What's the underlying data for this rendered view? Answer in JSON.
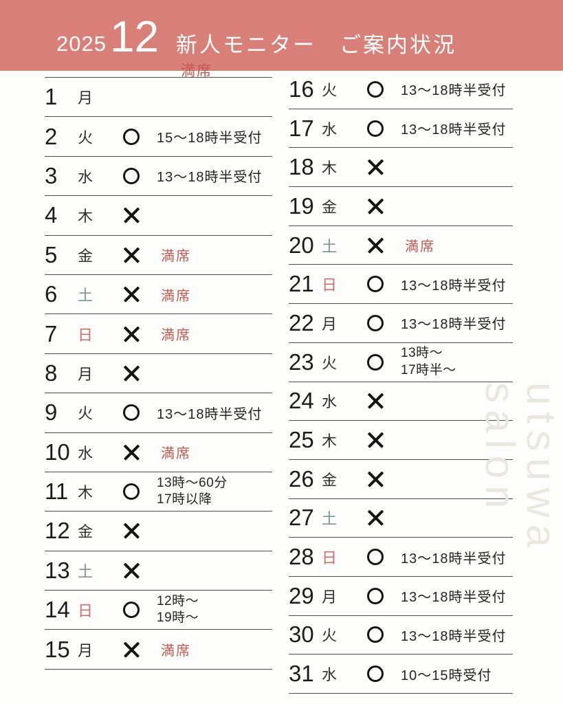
{
  "header": {
    "year": "2025",
    "month": "12",
    "title": "新人モニター　ご案内状況",
    "overflow_note": "満席"
  },
  "colors": {
    "banner_bg": "#d88078",
    "full_red": "#c4574f",
    "sunday": "#cb6d67",
    "saturday": "#7d939a",
    "line": "#4c4c4c",
    "ink": "#1c1c1c",
    "watermark": "#eae7e0"
  },
  "symbols": {
    "available": "○",
    "unavailable": "✕"
  },
  "days": [
    {
      "date": 1,
      "dow": "月",
      "dow_type": "wd",
      "status": "",
      "notes": [],
      "note_type": ""
    },
    {
      "date": 2,
      "dow": "火",
      "dow_type": "wd",
      "status": "o",
      "notes": [
        "15〜18時半受付"
      ],
      "note_type": "time"
    },
    {
      "date": 3,
      "dow": "水",
      "dow_type": "wd",
      "status": "o",
      "notes": [
        "13〜18時半受付"
      ],
      "note_type": "time"
    },
    {
      "date": 4,
      "dow": "木",
      "dow_type": "wd",
      "status": "x",
      "notes": [],
      "note_type": ""
    },
    {
      "date": 5,
      "dow": "金",
      "dow_type": "wd",
      "status": "x",
      "notes": [
        "満席"
      ],
      "note_type": "full"
    },
    {
      "date": 6,
      "dow": "土",
      "dow_type": "sat",
      "status": "x",
      "notes": [
        "満席"
      ],
      "note_type": "full"
    },
    {
      "date": 7,
      "dow": "日",
      "dow_type": "sun",
      "status": "x",
      "notes": [
        "満席"
      ],
      "note_type": "full"
    },
    {
      "date": 8,
      "dow": "月",
      "dow_type": "wd",
      "status": "x",
      "notes": [],
      "note_type": ""
    },
    {
      "date": 9,
      "dow": "火",
      "dow_type": "wd",
      "status": "o",
      "notes": [
        "13〜18時半受付"
      ],
      "note_type": "time"
    },
    {
      "date": 10,
      "dow": "水",
      "dow_type": "wd",
      "status": "x",
      "notes": [
        "満席"
      ],
      "note_type": "full"
    },
    {
      "date": 11,
      "dow": "木",
      "dow_type": "wd",
      "status": "o",
      "notes": [
        "13時〜60分",
        "17時以降"
      ],
      "note_type": "time"
    },
    {
      "date": 12,
      "dow": "金",
      "dow_type": "wd",
      "status": "x",
      "notes": [],
      "note_type": ""
    },
    {
      "date": 13,
      "dow": "土",
      "dow_type": "sat",
      "status": "x",
      "notes": [],
      "note_type": ""
    },
    {
      "date": 14,
      "dow": "日",
      "dow_type": "sun",
      "status": "o",
      "notes": [
        "12時〜",
        "19時〜"
      ],
      "note_type": "time"
    },
    {
      "date": 15,
      "dow": "月",
      "dow_type": "wd",
      "status": "x",
      "notes": [
        "満席"
      ],
      "note_type": "full"
    },
    {
      "date": 16,
      "dow": "火",
      "dow_type": "wd",
      "status": "o",
      "notes": [
        "13〜18時半受付"
      ],
      "note_type": "time"
    },
    {
      "date": 17,
      "dow": "水",
      "dow_type": "wd",
      "status": "o",
      "notes": [
        "13〜18時半受付"
      ],
      "note_type": "time"
    },
    {
      "date": 18,
      "dow": "木",
      "dow_type": "wd",
      "status": "x",
      "notes": [],
      "note_type": ""
    },
    {
      "date": 19,
      "dow": "金",
      "dow_type": "wd",
      "status": "x",
      "notes": [],
      "note_type": ""
    },
    {
      "date": 20,
      "dow": "土",
      "dow_type": "sat",
      "status": "x",
      "notes": [
        "満席"
      ],
      "note_type": "full"
    },
    {
      "date": 21,
      "dow": "日",
      "dow_type": "sun",
      "status": "o",
      "notes": [
        "13〜18時半受付"
      ],
      "note_type": "time"
    },
    {
      "date": 22,
      "dow": "月",
      "dow_type": "wd",
      "status": "o",
      "notes": [
        "13〜18時半受付"
      ],
      "note_type": "time"
    },
    {
      "date": 23,
      "dow": "火",
      "dow_type": "wd",
      "status": "o",
      "notes": [
        "13時〜",
        "17時半〜"
      ],
      "note_type": "time"
    },
    {
      "date": 24,
      "dow": "水",
      "dow_type": "wd",
      "status": "x",
      "notes": [],
      "note_type": ""
    },
    {
      "date": 25,
      "dow": "木",
      "dow_type": "wd",
      "status": "x",
      "notes": [],
      "note_type": ""
    },
    {
      "date": 26,
      "dow": "金",
      "dow_type": "wd",
      "status": "x",
      "notes": [],
      "note_type": ""
    },
    {
      "date": 27,
      "dow": "土",
      "dow_type": "sat",
      "status": "x",
      "notes": [],
      "note_type": ""
    },
    {
      "date": 28,
      "dow": "日",
      "dow_type": "sun",
      "status": "o",
      "notes": [
        "13〜18時半受付"
      ],
      "note_type": "time"
    },
    {
      "date": 29,
      "dow": "月",
      "dow_type": "wd",
      "status": "o",
      "notes": [
        "13〜18時半受付"
      ],
      "note_type": "time"
    },
    {
      "date": 30,
      "dow": "火",
      "dow_type": "wd",
      "status": "o",
      "notes": [
        "13〜18時半受付"
      ],
      "note_type": "time"
    },
    {
      "date": 31,
      "dow": "水",
      "dow_type": "wd",
      "status": "o",
      "notes": [
        "10〜15時受付"
      ],
      "note_type": "time"
    }
  ],
  "watermark": "utsuwa salon"
}
